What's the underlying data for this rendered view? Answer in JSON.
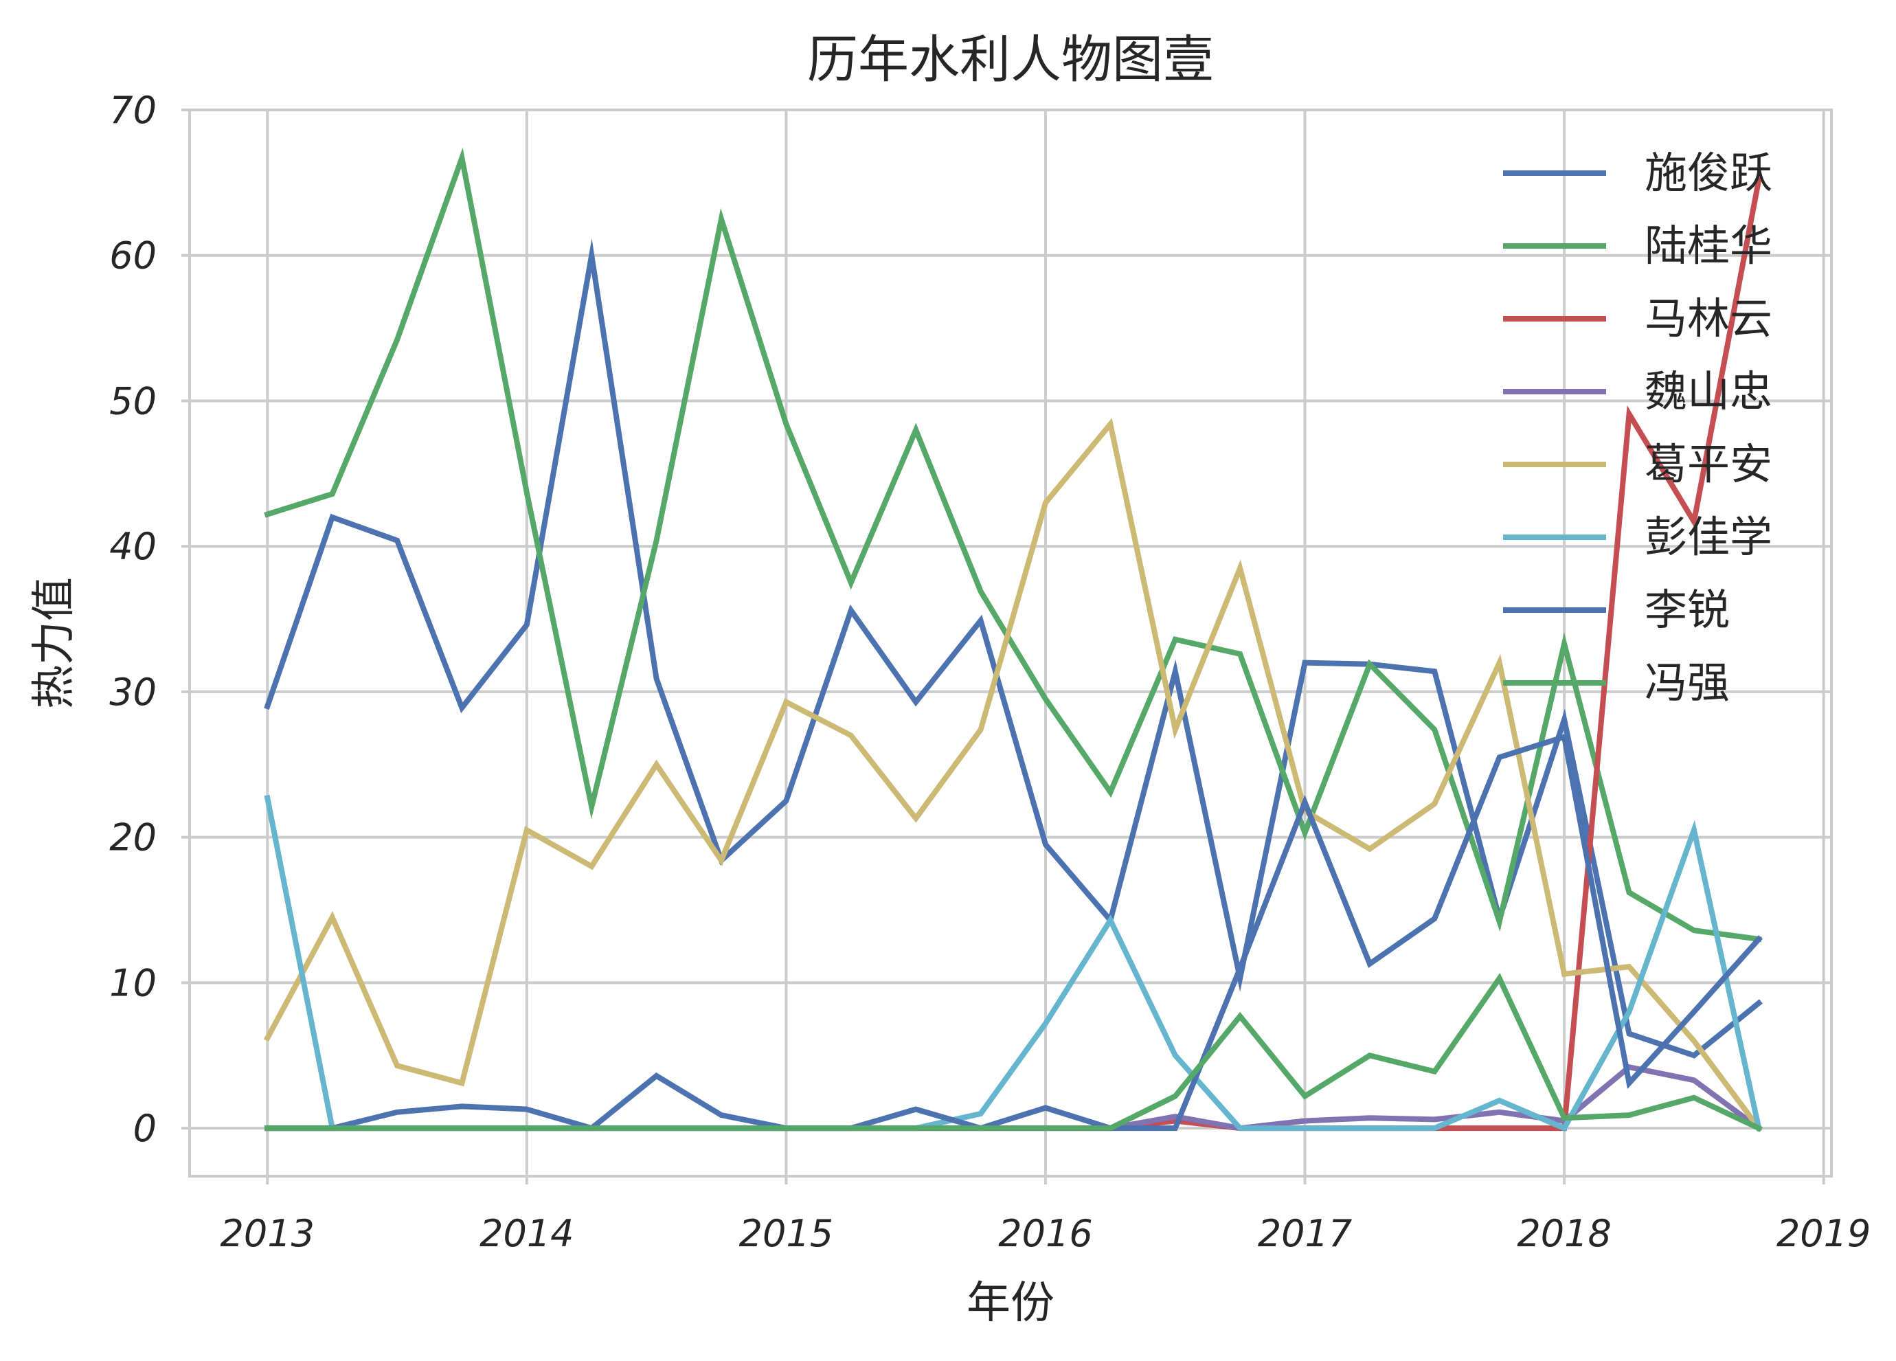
{
  "chart_data": {
    "type": "line",
    "title": "历年水利人物图壹",
    "xlabel": "年份",
    "ylabel": "热力值",
    "xlim": [
      2012.7,
      2019.03
    ],
    "ylim": [
      -3.3,
      70
    ],
    "xticks": [
      2013,
      2014,
      2015,
      2016,
      2017,
      2018,
      2019
    ],
    "yticks": [
      0,
      10,
      20,
      30,
      40,
      50,
      60,
      70
    ],
    "grid": true,
    "legend_position": "top-right",
    "x": [
      2013,
      2013.25,
      2013.5,
      2013.75,
      2014,
      2014.25,
      2014.5,
      2014.75,
      2015,
      2015.25,
      2015.5,
      2015.75,
      2016,
      2016.25,
      2016.5,
      2016.75,
      2017,
      2017.25,
      2017.5,
      2017.75,
      2018,
      2018.25,
      2018.5,
      2018.75
    ],
    "series": [
      {
        "name": "施俊跃",
        "color": "#4C72B0",
        "values": [
          29,
          42,
          40.4,
          28.9,
          34.6,
          60,
          30.9,
          18.4,
          22.5,
          35.6,
          29.3,
          34.9,
          19.5,
          14.3,
          31.4,
          10.3,
          32,
          31.9,
          31.4,
          14.4,
          28.1,
          6.5,
          5,
          8.6
        ]
      },
      {
        "name": "陆桂华",
        "color": "#55A868",
        "values": [
          42.2,
          43.6,
          54.2,
          66.7,
          43.7,
          22.1,
          40.4,
          62.5,
          48.4,
          37.5,
          48,
          36.9,
          29.5,
          23.1,
          33.6,
          32.6,
          20.3,
          31.9,
          27.4,
          14.2,
          33.3,
          16.2,
          13.6,
          13
        ]
      },
      {
        "name": "马林云",
        "color": "#C44E52",
        "values": [
          0,
          0,
          0,
          0,
          0,
          0,
          0,
          0,
          0,
          0,
          0,
          0,
          0,
          0,
          0.5,
          0,
          0,
          0,
          0,
          0,
          0,
          49.1,
          41.7,
          65.2
        ]
      },
      {
        "name": "魏山忠",
        "color": "#8172B2",
        "values": [
          0,
          0,
          0,
          0,
          0,
          0,
          0,
          0,
          0,
          0,
          0,
          0,
          0,
          0,
          0.8,
          0,
          0.5,
          0.7,
          0.6,
          1.1,
          0.5,
          4.2,
          3.3,
          0
        ]
      },
      {
        "name": "葛平安",
        "color": "#CCB974",
        "values": [
          6.2,
          14.5,
          4.3,
          3.1,
          20.5,
          18,
          25,
          18.4,
          29.3,
          27,
          21.3,
          27.4,
          43,
          48.4,
          27.4,
          38.5,
          21.8,
          19.2,
          22.3,
          32,
          10.6,
          11.1,
          6,
          0
        ]
      },
      {
        "name": "彭佳学",
        "color": "#64B5CD",
        "values": [
          22.7,
          0,
          0,
          0,
          0,
          0,
          0,
          0,
          0,
          0,
          0,
          1,
          7.2,
          14.3,
          5,
          0,
          0,
          0,
          0,
          1.9,
          0,
          8,
          20.5,
          0
        ]
      },
      {
        "name": "李锐",
        "color": "#4C72B0",
        "values": [
          0,
          0,
          1.1,
          1.5,
          1.3,
          0,
          3.6,
          0.9,
          0,
          0,
          1.3,
          0,
          1.4,
          0,
          0,
          11,
          22.4,
          11.3,
          14.4,
          25.5,
          26.9,
          3.1,
          8,
          13
        ]
      },
      {
        "name": "冯强",
        "color": "#55A868",
        "values": [
          0,
          0,
          0,
          0,
          0,
          0,
          0,
          0,
          0,
          0,
          0,
          0,
          0,
          0,
          2.2,
          7.7,
          2.2,
          5,
          3.9,
          10.3,
          0.7,
          0.9,
          2.1,
          0
        ]
      }
    ]
  }
}
